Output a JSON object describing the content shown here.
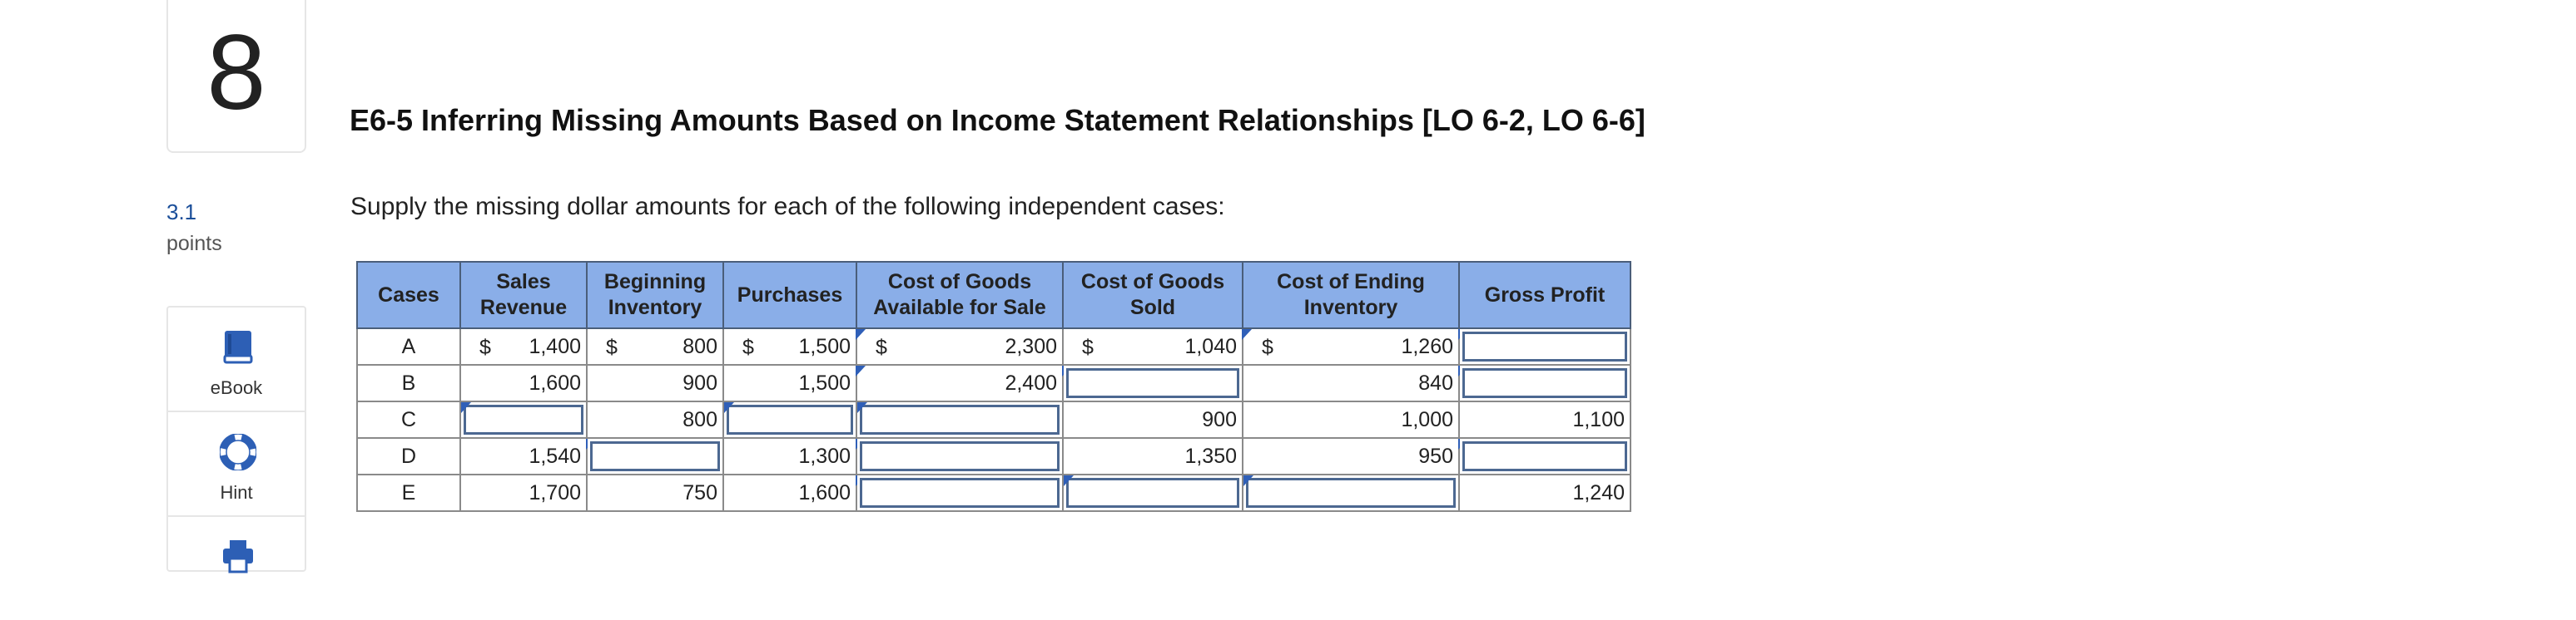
{
  "question": {
    "number": "8",
    "points_value": "3.1",
    "points_label": "points"
  },
  "tools": {
    "ebook_label": "eBook",
    "hint_label": "Hint"
  },
  "title": "E6-5 Inferring Missing Amounts Based on Income Statement Relationships [LO 6-2, LO 6-6]",
  "instructions": "Supply the missing dollar amounts for each of the following independent cases:",
  "table": {
    "headers": [
      "Cases",
      "Sales Revenue",
      "Beginning Inventory",
      "Purchases",
      "Cost of Goods Available for Sale",
      "Cost of Goods Sold",
      "Cost of Ending Inventory",
      "Gross Profit"
    ],
    "currency_symbol": "$",
    "rows": [
      {
        "case": "A",
        "sales": "1,400",
        "beg_inv": "800",
        "purchases": "1,500",
        "cogas": "2,300",
        "cogs": "1,040",
        "end_inv": "1,260",
        "gross": ""
      },
      {
        "case": "B",
        "sales": "1,600",
        "beg_inv": "900",
        "purchases": "1,500",
        "cogas": "2,400",
        "cogs": "",
        "end_inv": "840",
        "gross": ""
      },
      {
        "case": "C",
        "sales": "",
        "beg_inv": "800",
        "purchases": "",
        "cogas": "",
        "cogs": "900",
        "end_inv": "1,000",
        "gross": "1,100"
      },
      {
        "case": "D",
        "sales": "1,540",
        "beg_inv": "",
        "purchases": "1,300",
        "cogas": "",
        "cogs": "1,350",
        "end_inv": "950",
        "gross": ""
      },
      {
        "case": "E",
        "sales": "1,700",
        "beg_inv": "750",
        "purchases": "1,600",
        "cogas": "",
        "cogs": "",
        "end_inv": "",
        "gross": "1,240"
      }
    ]
  },
  "colors": {
    "header_bg": "#8aaee8",
    "input_border": "#4c6891",
    "points": "#1a4e99",
    "marker": "#2f5fb8"
  }
}
